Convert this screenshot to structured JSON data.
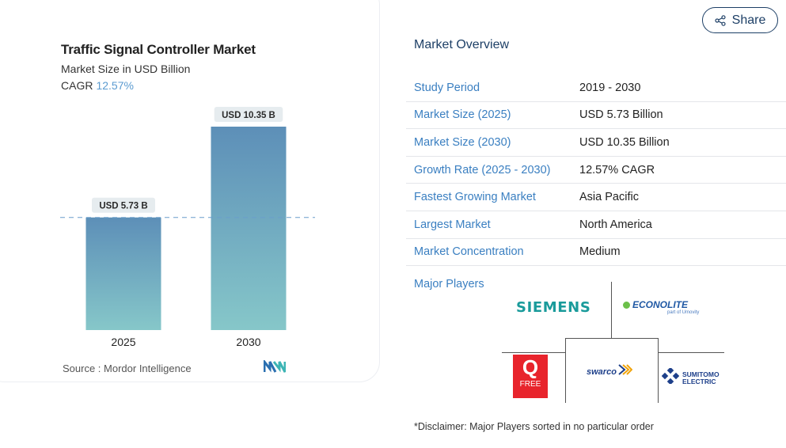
{
  "chart_card": {
    "title": "Traffic Signal Controller Market",
    "subtitle": "Market Size in USD Billion",
    "cagr_label": "CAGR",
    "cagr_value": "12.57%",
    "source": "Source :  Mordor Intelligence"
  },
  "chart_data": {
    "type": "bar",
    "title": "Traffic Signal Controller Market",
    "ylabel": "Market Size in USD Billion",
    "categories": [
      "2025",
      "2030"
    ],
    "values": [
      5.73,
      10.35
    ],
    "data_labels": [
      "USD 5.73 B",
      "USD 10.35 B"
    ],
    "ylim": [
      0,
      10.35
    ],
    "grid": false,
    "reference_line": 5.73,
    "colors": {
      "bar_top": "#5d8fb8",
      "bar_bottom": "#86c7c9",
      "label_bg": "#e6ecef",
      "reference_line": "#6a9ecb"
    }
  },
  "share": {
    "label": "Share",
    "icon": "share-icon"
  },
  "overview": {
    "title": "Market Overview",
    "rows": [
      {
        "key": "Study Period",
        "value": "2019 - 2030"
      },
      {
        "key": "Market Size (2025)",
        "value": "USD 5.73 Billion"
      },
      {
        "key": "Market Size (2030)",
        "value": "USD 10.35 Billion"
      },
      {
        "key": "Growth Rate (2025 - 2030)",
        "value": "12.57% CAGR"
      },
      {
        "key": "Fastest Growing Market",
        "value": "Asia Pacific"
      },
      {
        "key": "Largest Market",
        "value": "North America"
      },
      {
        "key": "Market Concentration",
        "value": "Medium"
      }
    ]
  },
  "major_players": {
    "label": "Major Players",
    "logos": {
      "siemens": "SIEMENS",
      "econolite": "ECONOLITE",
      "econolite_sub": "part of Umovity",
      "qfree_letter": "Q",
      "qfree_word": "FREE",
      "swarco": "swarco",
      "sumitomo_line1": "SUMITOMO",
      "sumitomo_line2": "ELECTRIC"
    }
  },
  "disclaimer": "*Disclaimer: Major Players sorted in no particular order",
  "colors": {
    "accent": "#3a7fc1",
    "navy": "#1d3f66"
  }
}
